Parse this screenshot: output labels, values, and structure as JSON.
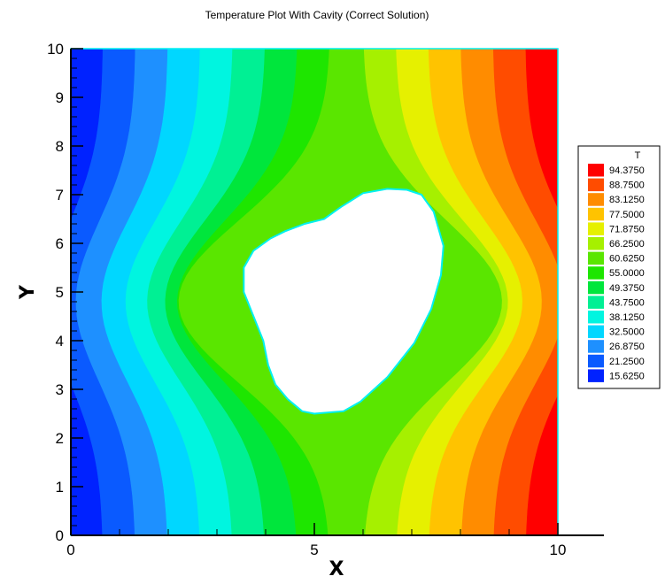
{
  "chart_data": {
    "type": "heatmap",
    "title": "Temperature Plot With Cavity (Correct Solution)",
    "xlabel": "X",
    "ylabel": "Y",
    "xlim": [
      0,
      10
    ],
    "ylim": [
      0,
      10
    ],
    "x_ticks": [
      "0",
      "5",
      "10"
    ],
    "y_ticks": [
      "0",
      "1",
      "2",
      "3",
      "4",
      "5",
      "6",
      "7",
      "8",
      "9",
      "10"
    ],
    "legend": {
      "title": "T",
      "placement": "right",
      "levels": [
        {
          "label": "94.3750",
          "color": "#ff0000"
        },
        {
          "label": "88.7500",
          "color": "#ff4c00"
        },
        {
          "label": "83.1250",
          "color": "#ff8c00"
        },
        {
          "label": "77.5000",
          "color": "#ffc300"
        },
        {
          "label": "71.8750",
          "color": "#e6f000"
        },
        {
          "label": "66.2500",
          "color": "#a6f000"
        },
        {
          "label": "60.6250",
          "color": "#5ae600"
        },
        {
          "label": "55.0000",
          "color": "#1ee600"
        },
        {
          "label": "49.3750",
          "color": "#00e63c"
        },
        {
          "label": "43.7500",
          "color": "#00f094"
        },
        {
          "label": "38.1250",
          "color": "#00f5e0"
        },
        {
          "label": "32.5000",
          "color": "#00d7ff"
        },
        {
          "label": "26.8750",
          "color": "#1e90ff"
        },
        {
          "label": "21.2500",
          "color": "#0a5aff"
        },
        {
          "label": "15.6250",
          "color": "#0022ff"
        }
      ]
    },
    "cavity_boundary": [
      [
        5.0,
        2.5
      ],
      [
        5.6,
        2.55
      ],
      [
        5.95,
        2.75
      ],
      [
        6.5,
        3.25
      ],
      [
        7.05,
        3.95
      ],
      [
        7.4,
        4.65
      ],
      [
        7.6,
        5.35
      ],
      [
        7.65,
        5.95
      ],
      [
        7.45,
        6.65
      ],
      [
        7.2,
        7.0
      ],
      [
        6.9,
        7.1
      ],
      [
        6.5,
        7.12
      ],
      [
        6.0,
        7.03
      ],
      [
        5.55,
        6.75
      ],
      [
        5.2,
        6.5
      ],
      [
        4.8,
        6.4
      ],
      [
        4.4,
        6.25
      ],
      [
        4.1,
        6.1
      ],
      [
        3.75,
        5.85
      ],
      [
        3.55,
        5.5
      ],
      [
        3.55,
        5.0
      ],
      [
        3.75,
        4.5
      ],
      [
        3.95,
        4.0
      ],
      [
        4.05,
        3.5
      ],
      [
        4.2,
        3.1
      ],
      [
        4.45,
        2.8
      ],
      [
        4.75,
        2.55
      ]
    ]
  }
}
